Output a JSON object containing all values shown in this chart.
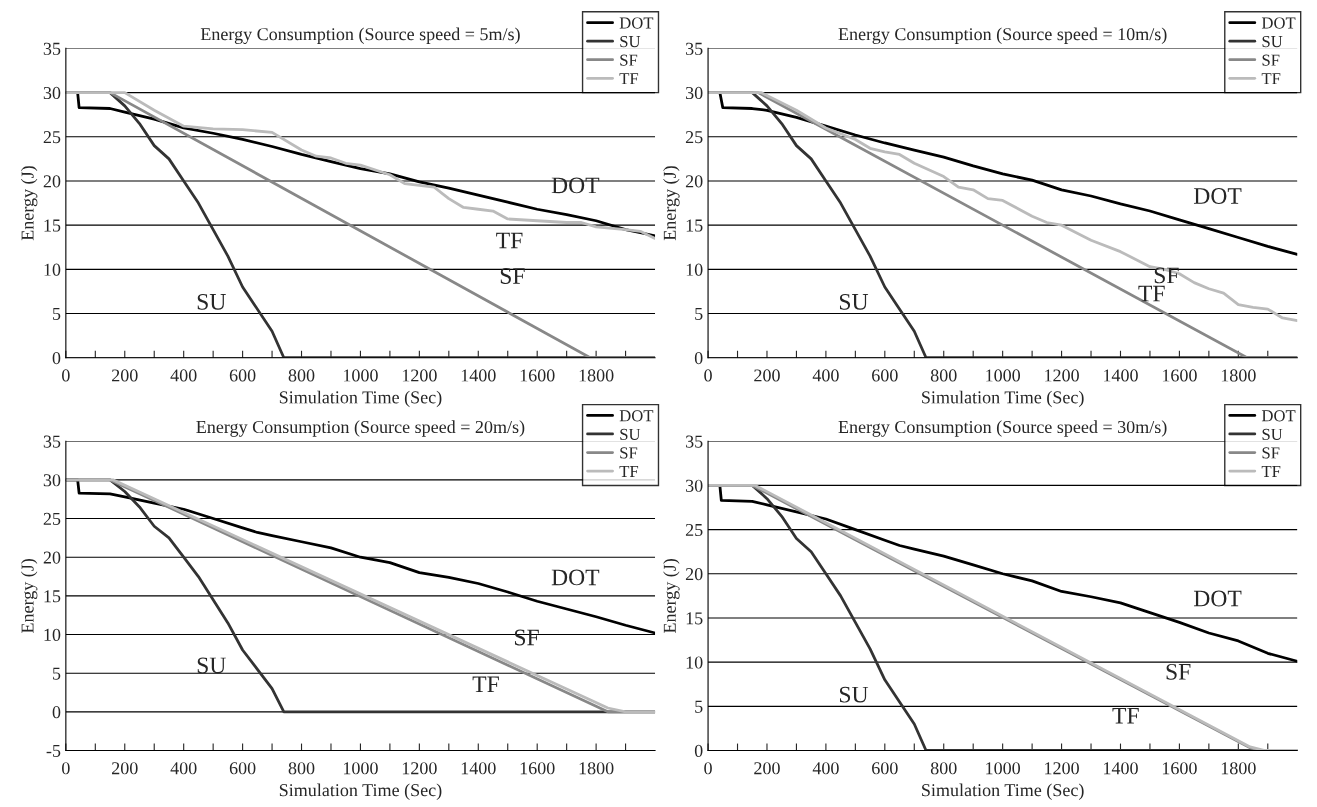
{
  "chart_data": [
    {
      "type": "line",
      "title": "Energy Consumption (Source speed = 5m/s)",
      "xlabel": "Simulation Time (Sec)",
      "ylabel": "Energy (J)",
      "xlim": [
        0,
        2000
      ],
      "xticks": [
        0,
        {
          "value": 100,
          "label": null
        },
        200,
        {
          "value": 300,
          "label": null
        },
        400,
        {
          "value": 500,
          "label": null
        },
        600,
        {
          "value": 700,
          "label": null
        },
        800,
        {
          "value": 900,
          "label": null
        },
        1000,
        {
          "value": 1100,
          "label": null
        },
        1200,
        {
          "value": 1300,
          "label": null
        },
        1400,
        {
          "value": 1500,
          "label": null
        },
        1600,
        {
          "value": 1700,
          "label": null
        },
        1800,
        {
          "value": 1900,
          "label": null
        }
      ],
      "ylim": [
        0,
        35
      ],
      "yticks": [
        0,
        5,
        10,
        15,
        20,
        25,
        30,
        35
      ],
      "grid": "y",
      "legend": "top right",
      "marker": "none",
      "line_style": "solid",
      "series": [
        {
          "name": "DOT",
          "color": "#000000",
          "x": [
            0,
            40,
            45,
            150,
            200,
            300,
            400,
            500,
            600,
            700,
            800,
            900,
            1000,
            1100,
            1200,
            1300,
            1400,
            1500,
            1600,
            1700,
            1800,
            1900,
            2000
          ],
          "values": [
            30,
            30,
            28.3,
            28.2,
            27.8,
            27,
            26,
            25.4,
            24.7,
            23.9,
            23,
            22.2,
            21.4,
            20.8,
            19.9,
            19.2,
            18.4,
            17.6,
            16.8,
            16.2,
            15.5,
            14.5,
            13.8
          ]
        },
        {
          "name": "SU",
          "color": "#333333",
          "x": [
            0,
            150,
            200,
            250,
            300,
            350,
            400,
            450,
            500,
            550,
            600,
            640,
            700,
            740,
            2000
          ],
          "values": [
            30,
            30,
            28.5,
            26.5,
            24,
            22.5,
            20,
            17.5,
            14.5,
            11.5,
            8,
            6,
            3,
            0,
            0
          ]
        },
        {
          "name": "SF",
          "color": "#888888",
          "x": [
            0,
            150,
            1780,
            2000
          ],
          "values": [
            30,
            30,
            0,
            0
          ]
        },
        {
          "name": "TF",
          "color": "#bbbbbb",
          "x": [
            0,
            200,
            300,
            400,
            500,
            600,
            700,
            800,
            850,
            900,
            950,
            1000,
            1100,
            1150,
            1200,
            1250,
            1300,
            1350,
            1400,
            1450,
            1500,
            1600,
            1700,
            1750,
            1800,
            1900,
            1950,
            2000
          ],
          "values": [
            30,
            30,
            28,
            26.2,
            25.9,
            25.8,
            25.5,
            23.5,
            22.8,
            22.6,
            22,
            21.8,
            20.7,
            19.7,
            19.5,
            19.3,
            18,
            17,
            16.8,
            16.6,
            15.7,
            15.5,
            15.3,
            15.3,
            14.8,
            14.5,
            14.3,
            13.5
          ]
        }
      ]
    },
    {
      "type": "line",
      "title": "Energy Consumption (Source speed = 10m/s)",
      "xlabel": "Simulation Time (Sec)",
      "ylabel": "Energy (J)",
      "xlim": [
        0,
        2000
      ],
      "xticks": [
        0,
        {
          "value": 100,
          "label": null
        },
        200,
        {
          "value": 300,
          "label": null
        },
        400,
        {
          "value": 500,
          "label": null
        },
        600,
        {
          "value": 700,
          "label": null
        },
        800,
        {
          "value": 900,
          "label": null
        },
        1000,
        {
          "value": 1100,
          "label": null
        },
        1200,
        {
          "value": 1300,
          "label": null
        },
        1400,
        {
          "value": 1500,
          "label": null
        },
        1600,
        {
          "value": 1700,
          "label": null
        },
        1800,
        {
          "value": 1900,
          "label": null
        }
      ],
      "ylim": [
        0,
        35
      ],
      "yticks": [
        0,
        5,
        10,
        15,
        20,
        25,
        30,
        35
      ],
      "grid": "y",
      "legend": "top right",
      "marker": "none",
      "line_style": "solid",
      "series": [
        {
          "name": "DOT",
          "color": "#000000",
          "x": [
            0,
            40,
            50,
            150,
            200,
            300,
            400,
            500,
            600,
            700,
            800,
            900,
            1000,
            1100,
            1200,
            1300,
            1400,
            1500,
            1600,
            1700,
            1800,
            1900,
            2000
          ],
          "values": [
            30,
            30,
            28.3,
            28.2,
            28,
            27.2,
            26.2,
            25.2,
            24.3,
            23.5,
            22.7,
            21.7,
            20.8,
            20.1,
            19,
            18.3,
            17.4,
            16.6,
            15.6,
            14.6,
            13.6,
            12.6,
            11.7
          ]
        },
        {
          "name": "SU",
          "color": "#333333",
          "x": [
            0,
            150,
            200,
            250,
            300,
            350,
            400,
            450,
            500,
            550,
            600,
            640,
            700,
            740,
            2000
          ],
          "values": [
            30,
            30,
            28.5,
            26.5,
            24,
            22.5,
            20,
            17.5,
            14.5,
            11.5,
            8,
            6,
            3,
            0,
            0
          ]
        },
        {
          "name": "SF",
          "color": "#888888",
          "x": [
            0,
            170,
            1830,
            2000
          ],
          "values": [
            30,
            30,
            0,
            0
          ]
        },
        {
          "name": "TF",
          "color": "#bbbbbb",
          "x": [
            0,
            180,
            300,
            400,
            500,
            550,
            600,
            650,
            700,
            800,
            850,
            900,
            950,
            1000,
            1100,
            1150,
            1200,
            1300,
            1400,
            1500,
            1550,
            1600,
            1650,
            1700,
            1750,
            1800,
            1850,
            1900,
            1950,
            2000
          ],
          "values": [
            30,
            30,
            28,
            26,
            24.7,
            23.7,
            23.3,
            23,
            22,
            20.5,
            19.3,
            19,
            18,
            17.8,
            16,
            15.3,
            15,
            13.3,
            12,
            10.3,
            10,
            9.5,
            8.5,
            7.8,
            7.3,
            6,
            5.7,
            5.5,
            4.5,
            4.2
          ]
        }
      ]
    },
    {
      "type": "line",
      "title": "Energy Consumption (Source speed = 20m/s)",
      "xlabel": "Simulation Time (Sec)",
      "ylabel": "Energy (J)",
      "xlim": [
        0,
        2000
      ],
      "xticks": [
        0,
        {
          "value": 100,
          "label": null
        },
        200,
        {
          "value": 300,
          "label": null
        },
        400,
        {
          "value": 500,
          "label": null
        },
        600,
        {
          "value": 700,
          "label": null
        },
        800,
        {
          "value": 900,
          "label": null
        },
        1000,
        {
          "value": 1100,
          "label": null
        },
        1200,
        {
          "value": 1300,
          "label": null
        },
        1400,
        {
          "value": 1500,
          "label": null
        },
        1600,
        {
          "value": 1700,
          "label": null
        },
        1800,
        {
          "value": 1900,
          "label": null
        }
      ],
      "ylim": [
        -5,
        35
      ],
      "yticks": [
        -5,
        0,
        5,
        10,
        15,
        20,
        25,
        30,
        35
      ],
      "grid": "y",
      "legend": "top right",
      "marker": "none",
      "line_style": "solid",
      "series": [
        {
          "name": "DOT",
          "color": "#000000",
          "x": [
            0,
            40,
            45,
            150,
            200,
            300,
            400,
            500,
            600,
            650,
            700,
            800,
            900,
            1000,
            1100,
            1200,
            1300,
            1400,
            1500,
            1600,
            1700,
            1800,
            1900,
            2000
          ],
          "values": [
            30,
            30,
            28.3,
            28.2,
            27.8,
            27,
            26.2,
            25,
            23.8,
            23.2,
            22.8,
            22,
            21.2,
            20,
            19.3,
            18,
            17.4,
            16.6,
            15.5,
            14.3,
            13.3,
            12.3,
            11.2,
            10.2
          ]
        },
        {
          "name": "SU",
          "color": "#333333",
          "x": [
            0,
            150,
            200,
            250,
            300,
            350,
            400,
            450,
            500,
            550,
            600,
            640,
            700,
            740,
            2000
          ],
          "values": [
            30,
            30,
            28.5,
            26.5,
            24,
            22.5,
            20,
            17.5,
            14.5,
            11.5,
            8,
            6,
            3,
            0,
            0
          ]
        },
        {
          "name": "SF",
          "color": "#888888",
          "x": [
            0,
            150,
            1840,
            2000
          ],
          "values": [
            30,
            30,
            0,
            0
          ]
        },
        {
          "name": "TF",
          "color": "#bbbbbb",
          "x": [
            0,
            160,
            1840,
            1900,
            2000
          ],
          "values": [
            30,
            30,
            0.5,
            0,
            0
          ]
        }
      ]
    },
    {
      "type": "line",
      "title": "Energy Consumption (Source speed = 30m/s)",
      "xlabel": "Simulation Time (Sec)",
      "ylabel": "Energy (J)",
      "xlim": [
        0,
        2000
      ],
      "xticks": [
        0,
        {
          "value": 100,
          "label": null
        },
        200,
        {
          "value": 300,
          "label": null
        },
        400,
        {
          "value": 500,
          "label": null
        },
        600,
        {
          "value": 700,
          "label": null
        },
        800,
        {
          "value": 900,
          "label": null
        },
        1000,
        {
          "value": 1100,
          "label": null
        },
        1200,
        {
          "value": 1300,
          "label": null
        },
        1400,
        {
          "value": 1500,
          "label": null
        },
        1600,
        {
          "value": 1700,
          "label": null
        },
        1800,
        {
          "value": 1900,
          "label": null
        }
      ],
      "ylim": [
        0,
        35
      ],
      "yticks": [
        0,
        5,
        10,
        15,
        20,
        25,
        30,
        35
      ],
      "grid": "y",
      "legend": "top right",
      "marker": "none",
      "line_style": "solid",
      "series": [
        {
          "name": "DOT",
          "color": "#000000",
          "x": [
            0,
            40,
            45,
            150,
            200,
            300,
            400,
            500,
            600,
            650,
            700,
            800,
            900,
            1000,
            1100,
            1200,
            1300,
            1400,
            1500,
            1600,
            1700,
            1800,
            1900,
            2000
          ],
          "values": [
            30,
            30,
            28.3,
            28.2,
            27.8,
            27,
            26.2,
            25,
            23.8,
            23.2,
            22.8,
            22,
            21,
            20,
            19.2,
            18,
            17.4,
            16.7,
            15.6,
            14.5,
            13.3,
            12.4,
            11,
            10.1
          ]
        },
        {
          "name": "SU",
          "color": "#333333",
          "x": [
            0,
            150,
            200,
            250,
            300,
            350,
            400,
            450,
            500,
            550,
            600,
            640,
            700,
            740,
            2000
          ],
          "values": [
            30,
            30,
            28.5,
            26.5,
            24,
            22.5,
            20,
            17.5,
            14.5,
            11.5,
            8,
            6,
            3,
            0,
            0
          ]
        },
        {
          "name": "SF",
          "color": "#888888",
          "x": [
            0,
            150,
            1840,
            1880,
            2000
          ],
          "values": [
            30,
            30,
            0.3,
            0,
            0
          ]
        },
        {
          "name": "TF",
          "color": "#bbbbbb",
          "x": [
            0,
            160,
            1840,
            1890,
            2000
          ],
          "values": [
            30,
            30,
            0.4,
            0,
            0
          ]
        }
      ]
    }
  ]
}
